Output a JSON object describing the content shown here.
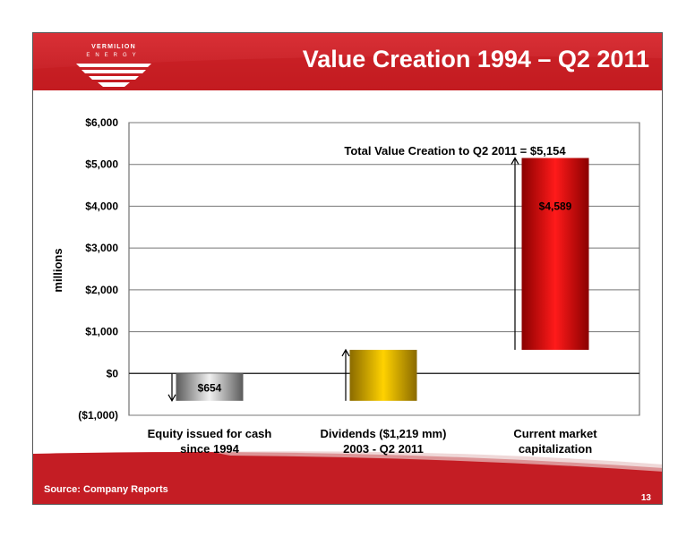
{
  "slide": {
    "title": "Value Creation 1994 – Q2 2011",
    "logo_top": "VERMILION",
    "logo_bottom": "ENERGY",
    "source": "Source:  Company Reports",
    "page_number": "13"
  },
  "colors": {
    "header_red": "#c8202a",
    "equity_bar": "#9a9a9a",
    "dividends_bar": "#e8b800",
    "market_cap_bar": "#dd1111"
  },
  "chart_data": {
    "type": "bar",
    "ylabel": "millions",
    "ylim": [
      -1000,
      6000
    ],
    "yticks": [
      6000,
      5000,
      4000,
      3000,
      2000,
      1000,
      0,
      -1000
    ],
    "ytick_labels": [
      "$6,000",
      "$5,000",
      "$4,000",
      "$3,000",
      "$2,000",
      "$1,000",
      "$0",
      "($1,000)"
    ],
    "grid": true,
    "categories": [
      [
        "Equity issued for cash",
        "since 1994"
      ],
      [
        "Dividends ($1,219 mm)",
        "2003 - Q2 2011"
      ],
      [
        "Current market",
        "capitalization"
      ]
    ],
    "bars": [
      {
        "bottom": -654,
        "top": 0,
        "label": "$654",
        "direction": "down"
      },
      {
        "bottom": -654,
        "top": 565,
        "label": "",
        "direction": "up"
      },
      {
        "bottom": 565,
        "top": 5154,
        "label": "$4,589",
        "direction": "up"
      }
    ],
    "annotation": "Total Value Creation to Q2 2011 = $5,154"
  }
}
